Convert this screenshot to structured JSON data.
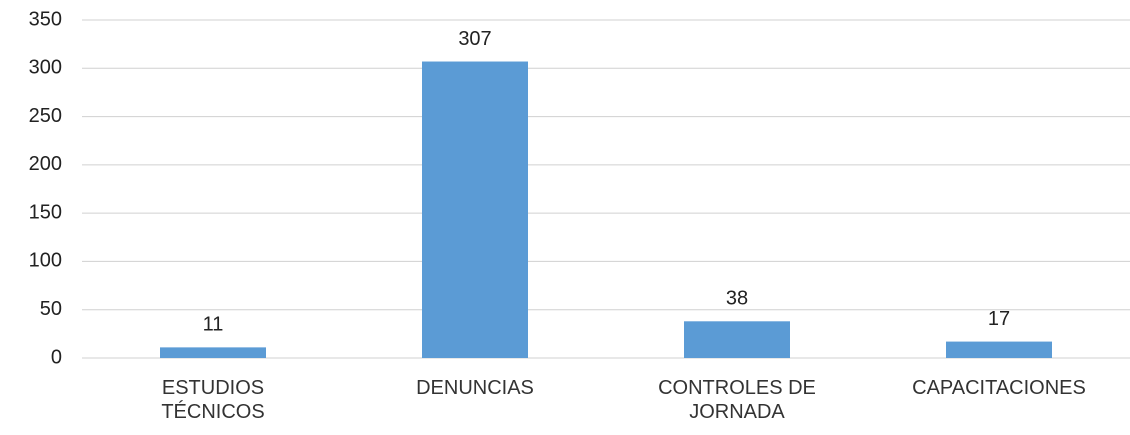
{
  "chart_data": {
    "type": "bar",
    "categories": [
      "ESTUDIOS TÉCNICOS",
      "DENUNCIAS",
      "CONTROLES DE JORNADA",
      "CAPACITACIONES"
    ],
    "values": [
      11,
      307,
      38,
      17
    ],
    "color": "#5b9bd5",
    "ylim": [
      0,
      350
    ],
    "yticks": [
      0,
      50,
      100,
      150,
      200,
      250,
      300,
      350
    ],
    "grid": true
  }
}
